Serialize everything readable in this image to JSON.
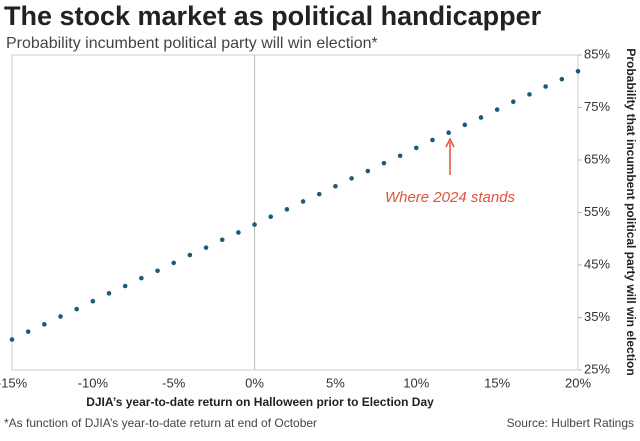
{
  "chart_data": {
    "type": "scatter",
    "title": "The stock market as political handicapper",
    "subtitle": "Probability incumbent political party will win election*",
    "x_label": "DJIA’s year-to-date return on Halloween prior to Election Day",
    "y_label": "Probability that incumbent political party will win election",
    "annotation": "Where 2024 stands",
    "footnote": "*As function of DJIA’s year-to-date return at end of October",
    "source": "Source: Hulbert Ratings",
    "x": [
      -15,
      -14,
      -13,
      -12,
      -11,
      -10,
      -9,
      -8,
      -7,
      -6,
      -5,
      -4,
      -3,
      -2,
      -1,
      0,
      1,
      2,
      3,
      4,
      5,
      6,
      7,
      8,
      9,
      10,
      11,
      12,
      13,
      14,
      15,
      16,
      17,
      18,
      19,
      20
    ],
    "series": [
      {
        "color": "#1e5a78",
        "values": [
          30.8,
          32.3,
          33.7,
          35.2,
          36.6,
          38.1,
          39.6,
          41.0,
          42.5,
          43.9,
          45.4,
          46.9,
          48.3,
          49.8,
          51.2,
          52.7,
          54.2,
          55.6,
          57.1,
          58.5,
          60.0,
          61.5,
          62.9,
          64.4,
          65.8,
          67.3,
          68.8,
          70.2,
          71.7,
          73.1,
          74.6,
          76.1,
          77.5,
          79.0,
          80.4,
          81.9
        ]
      }
    ],
    "xlim": [
      -15,
      20
    ],
    "xticks": [
      {
        "value": -15,
        "label": "-15%"
      },
      {
        "value": -10,
        "label": "-10%"
      },
      {
        "value": -5,
        "label": "-5%"
      },
      {
        "value": 0,
        "label": "0%"
      },
      {
        "value": 5,
        "label": "5%"
      },
      {
        "value": 10,
        "label": "10%"
      },
      {
        "value": 15,
        "label": "15%"
      },
      {
        "value": 20,
        "label": "20%"
      }
    ],
    "ylim": [
      25,
      85
    ],
    "yticks": [
      {
        "value": 25,
        "label": "25%"
      },
      {
        "value": 35,
        "label": "35%"
      },
      {
        "value": 45,
        "label": "45%"
      },
      {
        "value": 55,
        "label": "55%"
      },
      {
        "value": 65,
        "label": "65%"
      },
      {
        "value": 75,
        "label": "75%"
      },
      {
        "value": 85,
        "label": "85%"
      }
    ],
    "annotation_color": "#e0533b"
  }
}
